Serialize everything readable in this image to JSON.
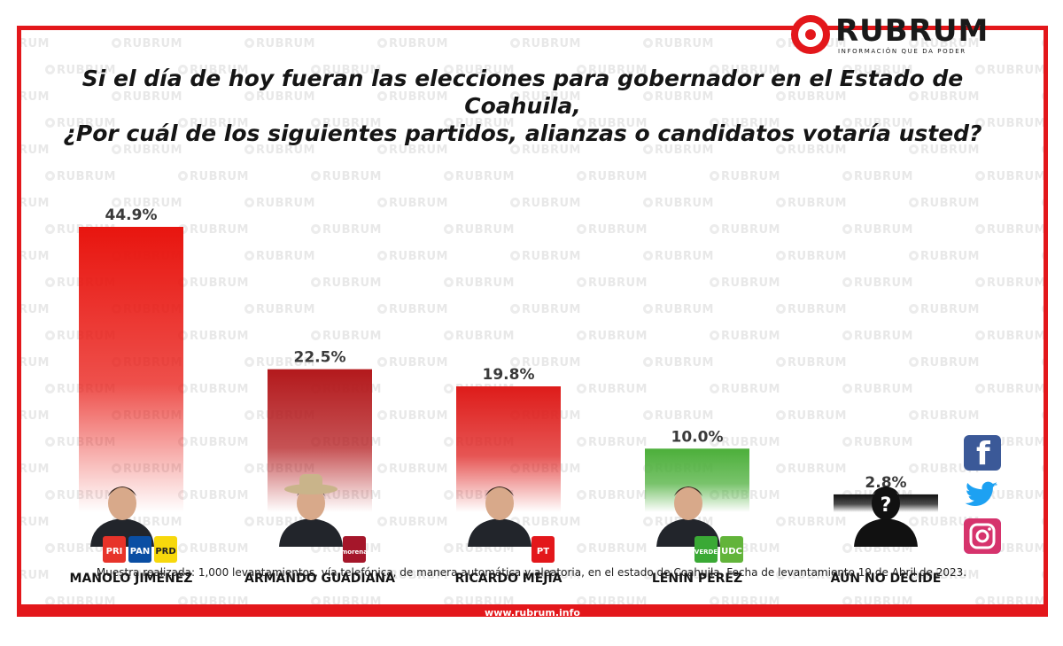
{
  "brand": {
    "name": "RUBRUM",
    "tagline": "INFORMACIÓN QUE DA PODER",
    "url": "www.rubrum.info",
    "color": "#e3171b"
  },
  "title": {
    "line1": "Si el día de hoy fueran las elecciones para gobernador en el Estado de Coahuila,",
    "line2": "¿Por cuál de los siguientes partidos, alianzas o candidatos votaría usted?"
  },
  "footnote": "Muestra realizada: 1,000 levantamientos, vía telefónica, de manera automática y aleatoria, en el estado de Coahuila. Fecha de levantamiento 19 de Abril de 2023.",
  "chart_data": {
    "type": "bar",
    "categories": [
      "MANOLO JIMÉNEZ",
      "ARMANDO GUADIANA",
      "RICARDO MEJÍA",
      "LENIN PÉREZ",
      "AÚN NO DECIDE"
    ],
    "values": [
      44.9,
      22.5,
      19.8,
      10.0,
      2.8
    ],
    "value_labels": [
      "44.9%",
      "22.5%",
      "19.8%",
      "10.0%",
      "2.8%"
    ],
    "colors": [
      "#e8150f",
      "#b3191c",
      "#de1c1a",
      "#4caf3a",
      "#111111"
    ],
    "parties": [
      [
        "PRI",
        "PAN",
        "PRD"
      ],
      [
        "morena"
      ],
      [
        "PT"
      ],
      [
        "VERDE",
        "UDC"
      ],
      []
    ],
    "title": "",
    "xlabel": "",
    "ylabel": "",
    "ylim": [
      0,
      50
    ],
    "grid": false,
    "legend": "none"
  },
  "social": [
    "facebook-icon",
    "twitter-icon",
    "instagram-icon"
  ]
}
